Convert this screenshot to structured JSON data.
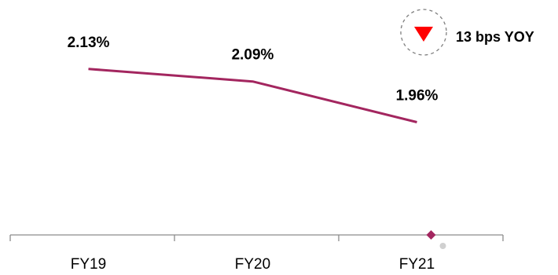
{
  "chart_data": {
    "type": "line",
    "categories": [
      "FY19",
      "FY20",
      "FY21"
    ],
    "series": [
      {
        "values": [
          2.13,
          2.09,
          1.96
        ],
        "labels": [
          "2.13%",
          "2.09%",
          "1.96%"
        ]
      }
    ],
    "ylim": [
      1.6,
      2.3
    ],
    "grid": false,
    "legend": "none",
    "annotation": {
      "text": "13 bps YOY",
      "direction": "down",
      "icon": "down-triangle-icon"
    }
  },
  "colors": {
    "line": "#A3265F",
    "axis": "#8C8C8C",
    "badge_arrow": "#FF0000",
    "badge_ring": "#7F7F7F"
  }
}
